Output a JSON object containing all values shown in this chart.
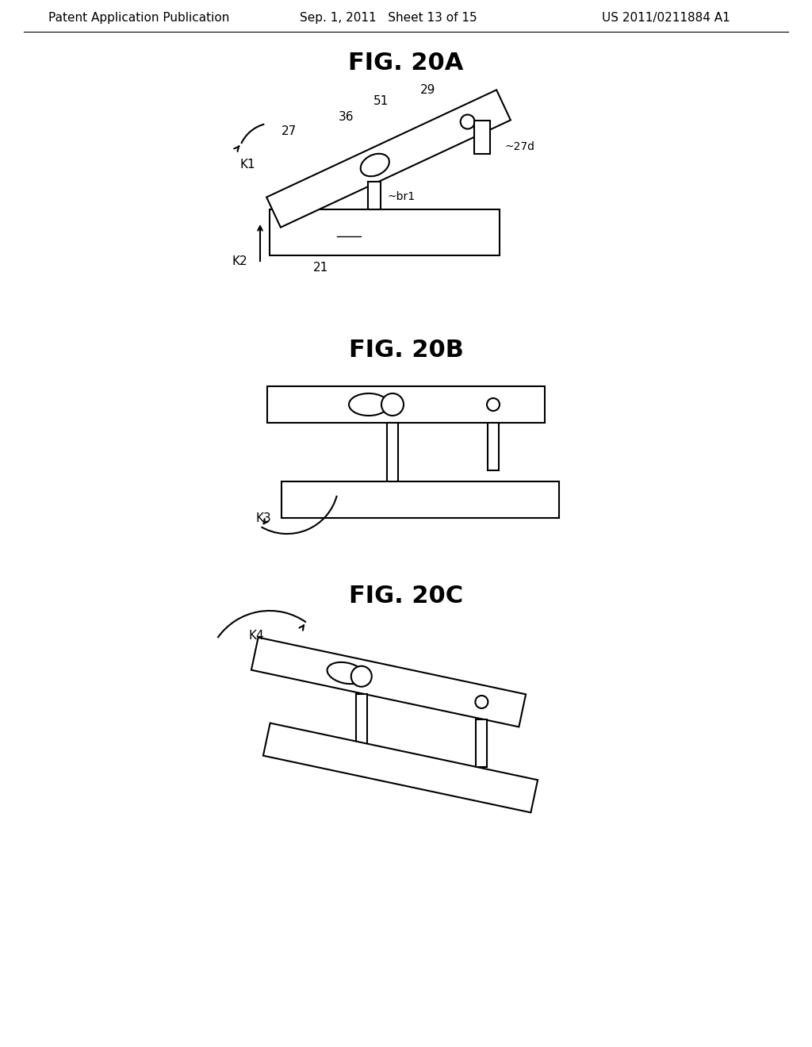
{
  "background_color": "#ffffff",
  "header_left": "Patent Application Publication",
  "header_center": "Sep. 1, 2011   Sheet 13 of 15",
  "header_right": "US 2011/0211884 A1",
  "fig_titles": [
    "FIG. 20A",
    "FIG. 20B",
    "FIG. 20C"
  ],
  "fig_title_fontsize": 22,
  "header_fontsize": 11,
  "label_fontsize": 11
}
